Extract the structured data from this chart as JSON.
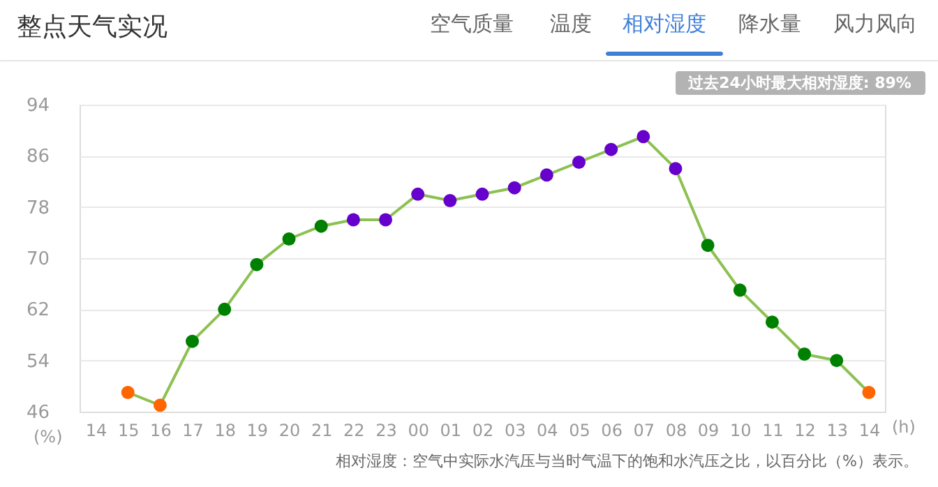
{
  "chart_data": {
    "type": "line",
    "title": "整点天气实况",
    "xlabel": "(h)",
    "ylabel": "(%)",
    "categories": [
      "14",
      "15",
      "16",
      "17",
      "18",
      "19",
      "20",
      "21",
      "22",
      "23",
      "00",
      "01",
      "02",
      "03",
      "04",
      "05",
      "06",
      "07",
      "08",
      "09",
      "10",
      "11",
      "12",
      "13",
      "14"
    ],
    "series": [
      {
        "color": "#8cc152",
        "values": [
          null,
          49,
          47,
          57,
          62,
          69,
          73,
          75,
          76,
          76,
          80,
          79,
          80,
          81,
          83,
          85,
          87,
          89,
          84,
          72,
          65,
          60,
          55,
          54,
          49
        ],
        "colors": [
          "#ff6600",
          "#ff6600",
          "#ff6600",
          "#008000",
          "#008000",
          "#008000",
          "#008000",
          "#008000",
          "#6600cc",
          "#6600cc",
          "#6600cc",
          "#6600cc",
          "#6600cc",
          "#6600cc",
          "#6600cc",
          "#6600cc",
          "#6600cc",
          "#6600cc",
          "#6600cc",
          "#008000",
          "#008000",
          "#008000",
          "#008000",
          "#008000",
          "#ff6600"
        ]
      }
    ],
    "ylim": [
      46,
      94
    ],
    "yticks": [
      46,
      54,
      62,
      70,
      78,
      86,
      94
    ],
    "grid": "y",
    "marker": "circle",
    "line_style": "solid",
    "annotations": [
      "空气质量",
      "温度",
      "相对湿度",
      "降水量",
      "风力风向",
      "过去24小时最大相对湿度: 89%",
      "相对湿度：空气中实际水汽压与当时气温下的饱和水汽压之比，以百分比（%）表示。"
    ]
  }
}
